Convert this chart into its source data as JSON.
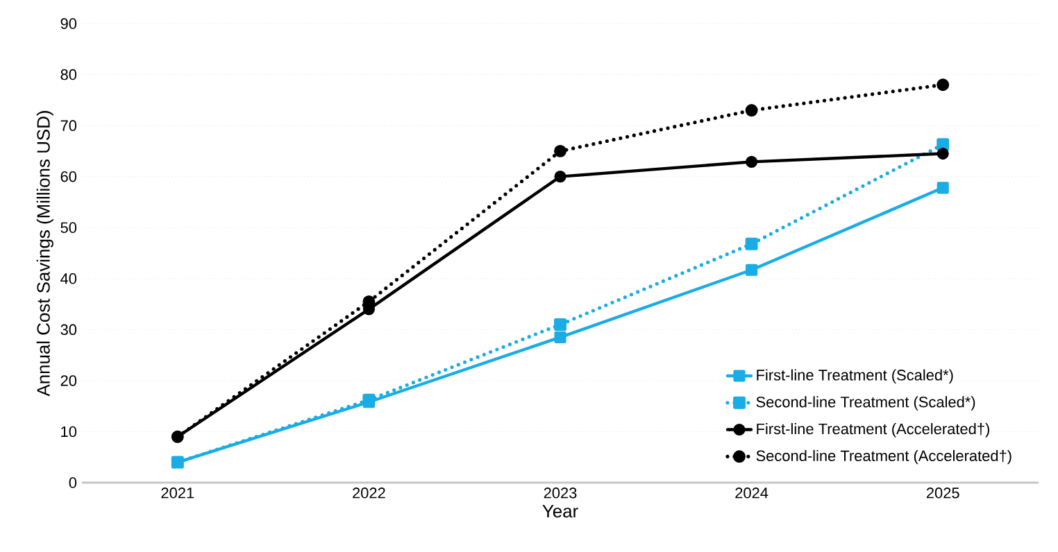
{
  "chart_data": {
    "type": "line",
    "xlabel": "Year",
    "ylabel": "Annual  Cost Savings (Millions USD)",
    "categories": [
      "2021",
      "2022",
      "2023",
      "2024",
      "2025"
    ],
    "series": [
      {
        "name": "First-line Treatment (Scaled*)",
        "color": "#1aace4",
        "marker": "square",
        "line_style": "solid",
        "values": [
          4,
          15.8,
          28.5,
          41.7,
          57.8
        ]
      },
      {
        "name": "Second-line Treatment (Scaled*)",
        "color": "#1aace4",
        "marker": "square",
        "line_style": "dotted",
        "values": [
          4,
          16.2,
          31,
          46.8,
          66.3
        ]
      },
      {
        "name": "First-line Treatment (Accelerated†)",
        "color": "#000000",
        "marker": "circle",
        "line_style": "solid",
        "values": [
          9,
          34,
          60,
          62.9,
          64.5
        ]
      },
      {
        "name": "Second-line Treatment (Accelerated†)",
        "color": "#000000",
        "marker": "circle",
        "line_style": "dotted",
        "values": [
          9,
          35.5,
          65,
          73,
          78
        ]
      }
    ],
    "ylim": [
      0,
      90
    ],
    "yticks": [
      0,
      10,
      20,
      30,
      40,
      50,
      60,
      70,
      80,
      90
    ],
    "grid": "y",
    "legend": "bottom right"
  }
}
